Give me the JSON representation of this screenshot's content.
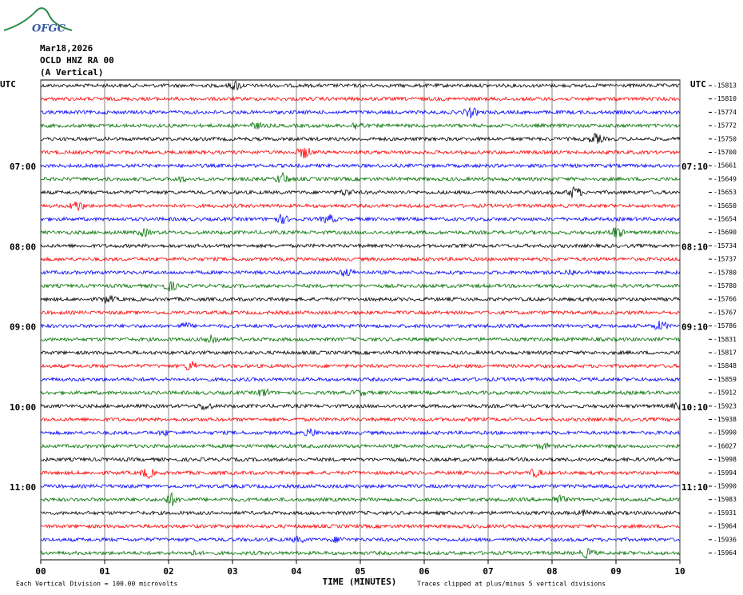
{
  "chart_data": {
    "type": "helicorder",
    "logo": "OFGC",
    "date": "Mar18,2026",
    "station": "OCLD HNZ RA 00",
    "component": "(A Vertical)",
    "left_timezone": "UTC",
    "right_timezone": "UTC",
    "left_labels": [
      null,
      null,
      null,
      null,
      null,
      null,
      "07:00",
      null,
      null,
      null,
      null,
      null,
      "08:00",
      null,
      null,
      null,
      null,
      null,
      "09:00",
      null,
      null,
      null,
      null,
      null,
      "10:00",
      null,
      null,
      null,
      null,
      null,
      "11:00",
      null,
      null,
      null,
      null,
      null
    ],
    "right_labels": [
      null,
      null,
      null,
      null,
      null,
      null,
      "07:10",
      null,
      null,
      null,
      null,
      null,
      "08:10",
      null,
      null,
      null,
      null,
      null,
      "09:10",
      null,
      null,
      null,
      null,
      null,
      "10:10",
      null,
      null,
      null,
      null,
      null,
      "11:10",
      null,
      null,
      null,
      null,
      null
    ],
    "trace_means": [
      -15813,
      -15810,
      -15774,
      -15772,
      -15750,
      -15700,
      -15661,
      -15649,
      -15653,
      -15650,
      -15654,
      -15690,
      -15734,
      -15737,
      -15780,
      -15780,
      -15766,
      -15767,
      -15786,
      -15831,
      -15817,
      -15848,
      -15859,
      -15912,
      -15923,
      -15938,
      -15990,
      -16027,
      -15998,
      -15994,
      -15990,
      -15983,
      -15931,
      -15964,
      -15936,
      -15964
    ],
    "colors": [
      "#000000",
      "#ff0000",
      "#0000ff",
      "#007000"
    ],
    "xlim": [
      0,
      10
    ],
    "xticks": [
      {
        "value": 0,
        "label": "00"
      },
      {
        "value": 1,
        "label": "01"
      },
      {
        "value": 2,
        "label": "02"
      },
      {
        "value": 3,
        "label": "03"
      },
      {
        "value": 4,
        "label": "04"
      },
      {
        "value": 5,
        "label": "05"
      },
      {
        "value": 6,
        "label": "06"
      },
      {
        "value": 7,
        "label": "07"
      },
      {
        "value": 8,
        "label": "08"
      },
      {
        "value": 9,
        "label": "09"
      },
      {
        "value": 10,
        "label": "10"
      }
    ],
    "xlabel": "TIME (MINUTES)",
    "scale_note": "Each Vertical Division =  100.00 microvolts",
    "clip_note": "Traces clipped at plus/minus 5 vertical divisions"
  }
}
